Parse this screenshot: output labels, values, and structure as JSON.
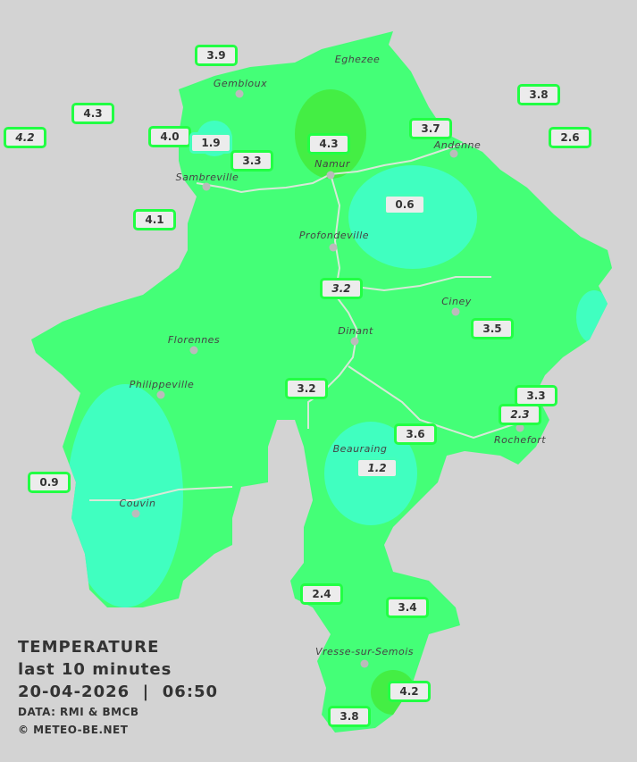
{
  "title": "TEMPERATURE",
  "subtitle": "last 10 minutes",
  "datetime": "20-04-2026  |  06:50",
  "source": "DATA: RMI & BMCB",
  "copyright": "© METEO-BE.NET",
  "colors": {
    "background": "#d3d3d3",
    "warm_zone": "#44ff77",
    "cool_zone": "#40ffc0",
    "warmer_zone": "#44ee44",
    "badge_border": "#22ff44"
  },
  "cities": [
    "Gembloux",
    "Eghezee",
    "Andenne",
    "Sambreville",
    "Namur",
    "Profondeville",
    "Ciney",
    "Dinant",
    "Florennes",
    "Philippeville",
    "Couvin",
    "Beauraing",
    "Rochefort",
    "Vresse-sur-Semois"
  ],
  "stations": [
    "3.9",
    "4.3",
    "4.2",
    "4.0",
    "1.9",
    "3.3",
    "4.3",
    "3.7",
    "3.8",
    "2.6",
    "4.1",
    "0.6",
    "3.2",
    "3.5",
    "3.2",
    "3.3",
    "2.3",
    "3.6",
    "1.2",
    "0.9",
    "2.4",
    "3.4",
    "4.2",
    "3.8"
  ]
}
